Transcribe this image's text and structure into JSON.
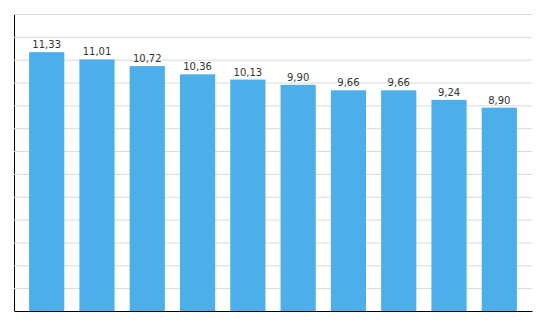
{
  "chart_data": {
    "type": "bar",
    "categories": [
      null,
      null,
      null,
      null,
      null,
      null,
      null,
      null,
      null,
      null
    ],
    "values": [
      11.33,
      11.01,
      10.72,
      10.36,
      10.13,
      9.9,
      9.66,
      9.66,
      9.24,
      8.9
    ],
    "value_labels": [
      "11,33",
      "11,01",
      "10,72",
      "10,36",
      "10,13",
      "9,90",
      "9,66",
      "9,66",
      "9,24",
      "8,90"
    ],
    "data_labels": true,
    "color": "#4DAFEA",
    "ylim": [
      0,
      13
    ],
    "yticks": [
      0,
      1,
      2,
      3,
      4,
      5,
      6,
      7,
      8,
      9,
      10,
      11,
      12,
      13
    ],
    "grid": true,
    "tick_labels": false
  }
}
